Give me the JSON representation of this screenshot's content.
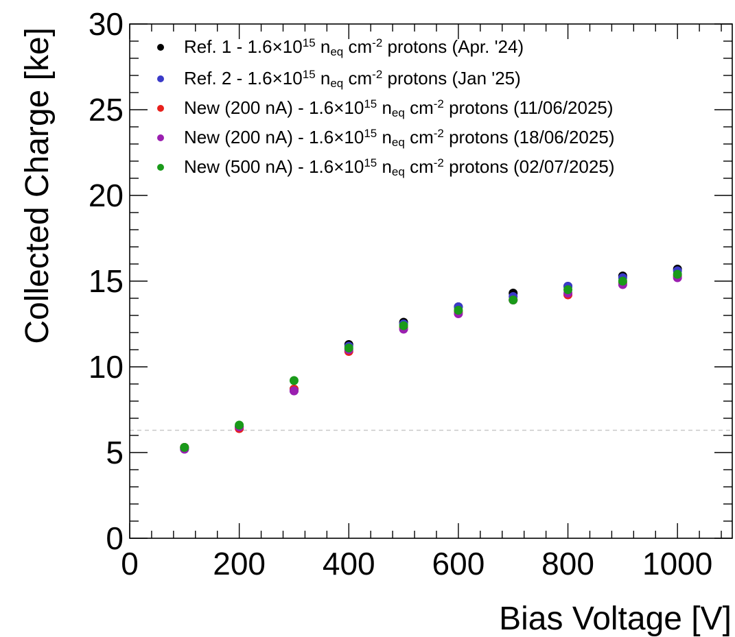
{
  "chart_data": {
    "type": "scatter",
    "xlabel": "Bias Voltage [V]",
    "ylabel": "Collected Charge [ke]",
    "xlim": [
      0,
      1100
    ],
    "ylim": [
      0,
      30
    ],
    "x_ticks": [
      "0",
      "200",
      "400",
      "600",
      "800",
      "1000"
    ],
    "y_ticks": [
      "0",
      "5",
      "10",
      "15",
      "20",
      "25",
      "30"
    ],
    "legend_position": "top-left",
    "reference_line": {
      "y": 6.3,
      "style": "dashed",
      "color": "#c8c8c8"
    },
    "series": [
      {
        "name": "Ref. 1 - 1.6×10¹⁵ n_eq cm⁻² protons (Apr. '24)",
        "legend": {
          "prefix": "Ref. 1 - 1.6×10",
          "exp": "15",
          "n": "n",
          "sub": "eq",
          "cm": "cm",
          "cmexp": "-2",
          "suffix": "protons (Apr. '24)"
        },
        "color": "#000000",
        "x": [
          100,
          200,
          300,
          400,
          500,
          600,
          700,
          800,
          900,
          1000
        ],
        "y": [
          5.3,
          6.5,
          8.7,
          11.3,
          12.6,
          13.5,
          14.3,
          14.7,
          15.3,
          15.7
        ]
      },
      {
        "name": "Ref. 2 - 1.6×10¹⁵ n_eq cm⁻² protons (Jan '25)",
        "legend": {
          "prefix": "Ref. 2 - 1.6×10",
          "exp": "15",
          "n": "n",
          "sub": "eq",
          "cm": "cm",
          "cmexp": "-2",
          "suffix": "protons (Jan '25)"
        },
        "color": "#3a3ac8",
        "x": [
          100,
          200,
          300,
          400,
          500,
          600,
          700,
          800,
          900,
          1000
        ],
        "y": [
          5.2,
          6.5,
          8.6,
          11.2,
          12.5,
          13.5,
          14.1,
          14.7,
          15.2,
          15.6
        ]
      },
      {
        "name": "New (200 nA) - 1.6×10¹⁵ n_eq cm⁻² protons (11/06/2025)",
        "legend": {
          "prefix": "New (200 nA) - 1.6×10",
          "exp": "15",
          "n": "n",
          "sub": "eq",
          "cm": "cm",
          "cmexp": "-2",
          "suffix": "protons (11/06/2025)"
        },
        "color": "#e8201c",
        "x": [
          100,
          200,
          300,
          400,
          500,
          600,
          700,
          800,
          900,
          1000
        ],
        "y": [
          5.3,
          6.4,
          8.7,
          10.9,
          12.3,
          13.2,
          13.9,
          14.2,
          14.9,
          15.3
        ]
      },
      {
        "name": "New (200 nA) - 1.6×10¹⁵ n_eq cm⁻² protons (18/06/2025)",
        "legend": {
          "prefix": "New (200 nA) - 1.6×10",
          "exp": "15",
          "n": "n",
          "sub": "eq",
          "cm": "cm",
          "cmexp": "-2",
          "suffix": "protons (18/06/2025)"
        },
        "color": "#9b1fb0",
        "x": [
          100,
          200,
          300,
          400,
          500,
          600,
          700,
          800,
          900,
          1000
        ],
        "y": [
          5.2,
          6.5,
          8.6,
          11.0,
          12.2,
          13.1,
          13.9,
          14.3,
          14.8,
          15.2
        ]
      },
      {
        "name": "New (500 nA) - 1.6×10¹⁵ n_eq cm⁻² protons (02/07/2025)",
        "legend": {
          "prefix": "New (500 nA) - 1.6×10",
          "exp": "15",
          "n": "n",
          "sub": "eq",
          "cm": "cm",
          "cmexp": "-2",
          "suffix": "protons (02/07/2025)"
        },
        "color": "#1a9a1a",
        "x": [
          100,
          200,
          300,
          400,
          500,
          600,
          700,
          800,
          900,
          1000
        ],
        "y": [
          5.3,
          6.6,
          9.2,
          11.1,
          12.4,
          13.3,
          13.9,
          14.5,
          15.0,
          15.4
        ]
      }
    ]
  }
}
